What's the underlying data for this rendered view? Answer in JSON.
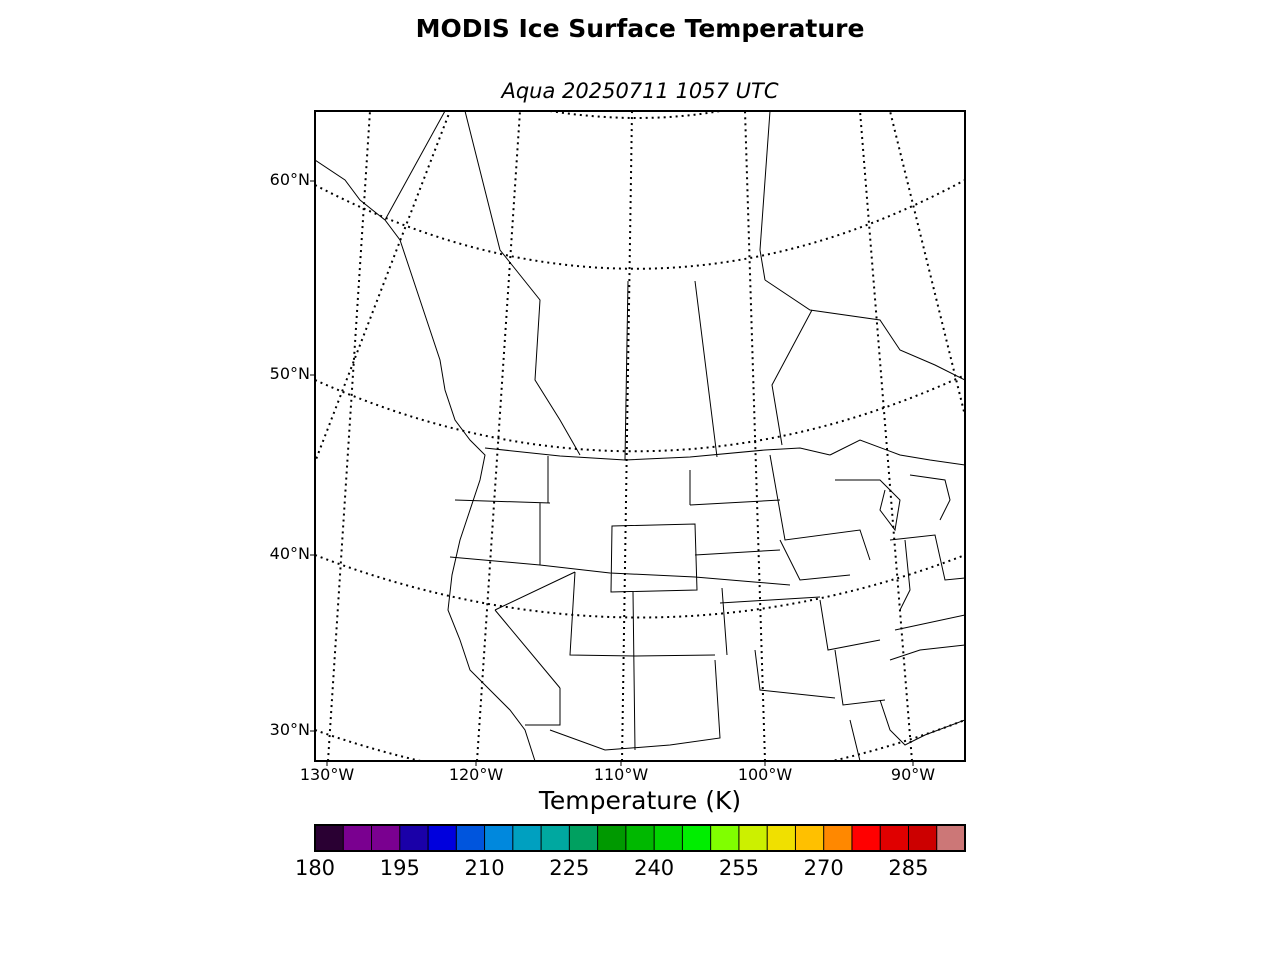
{
  "title": "MODIS Ice Surface Temperature",
  "subtitle": "Aqua 20250711 1057 UTC",
  "lat_labels": [
    "60°N",
    "50°N",
    "40°N",
    "30°N"
  ],
  "lon_labels": [
    "130°W",
    "120°W",
    "110°W",
    "100°W",
    "90°W"
  ],
  "colorbar": {
    "title": "Temperature (K)",
    "min": 180,
    "max": 295,
    "ticks": [
      "180",
      "195",
      "210",
      "225",
      "240",
      "255",
      "270",
      "285"
    ],
    "colors": [
      "#2a0033",
      "#7a0090",
      "#7a0090",
      "#1a00a8",
      "#0000dd",
      "#0055dd",
      "#0088dd",
      "#00a0c0",
      "#00a8a0",
      "#00a060",
      "#009900",
      "#00b800",
      "#00d400",
      "#00ee00",
      "#80ff00",
      "#ccf000",
      "#f0e000",
      "#ffc000",
      "#ff8800",
      "#ff0000",
      "#e00000",
      "#cc0000",
      "#cc7777"
    ]
  }
}
